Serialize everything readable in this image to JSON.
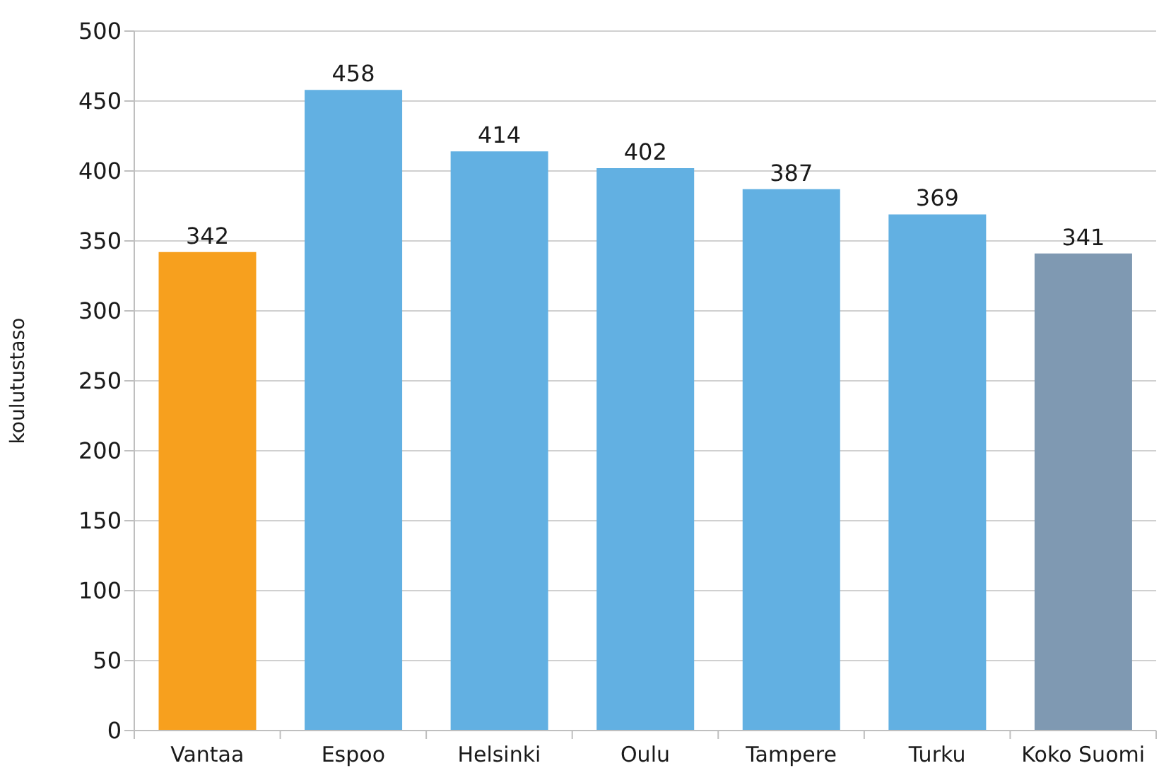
{
  "chart_data": {
    "type": "bar",
    "ylabel": "koulutustaso",
    "categories": [
      "Vantaa",
      "Espoo",
      "Helsinki",
      "Oulu",
      "Tampere",
      "Turku",
      "Koko Suomi"
    ],
    "values": [
      342,
      458,
      414,
      402,
      387,
      369,
      341
    ],
    "colors": [
      "#f7a01e",
      "#62b0e2",
      "#62b0e2",
      "#62b0e2",
      "#62b0e2",
      "#62b0e2",
      "#7f99b2"
    ],
    "ylim": [
      0,
      500
    ],
    "yticks": [
      0,
      50,
      100,
      150,
      200,
      250,
      300,
      350,
      400,
      450,
      500
    ],
    "grid": "y",
    "data_labels": true
  }
}
